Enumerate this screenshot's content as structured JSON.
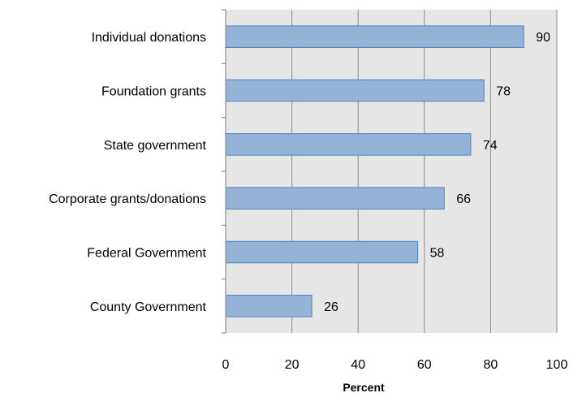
{
  "chart_data": {
    "type": "bar",
    "orientation": "horizontal",
    "categories": [
      "Individual donations",
      "Foundation grants",
      "State government",
      "Corporate grants/donations",
      "Federal Government",
      "County Government"
    ],
    "values": [
      90,
      78,
      74,
      66,
      58,
      26
    ],
    "data_labels": [
      "90",
      "78",
      "74",
      "66",
      "58",
      "26"
    ],
    "xlabel": "Percent",
    "xlim": [
      0,
      100
    ],
    "xticks": [
      "0",
      "20",
      "40",
      "60",
      "80",
      "100"
    ],
    "grid": true,
    "legend": "none",
    "colors": {
      "bar_fill": "#95b3d7",
      "bar_stroke": "#4f81bd",
      "plot_background": "#e6e6e6",
      "grid": "#8c8c8c",
      "axis": "#7f7f7f"
    }
  }
}
